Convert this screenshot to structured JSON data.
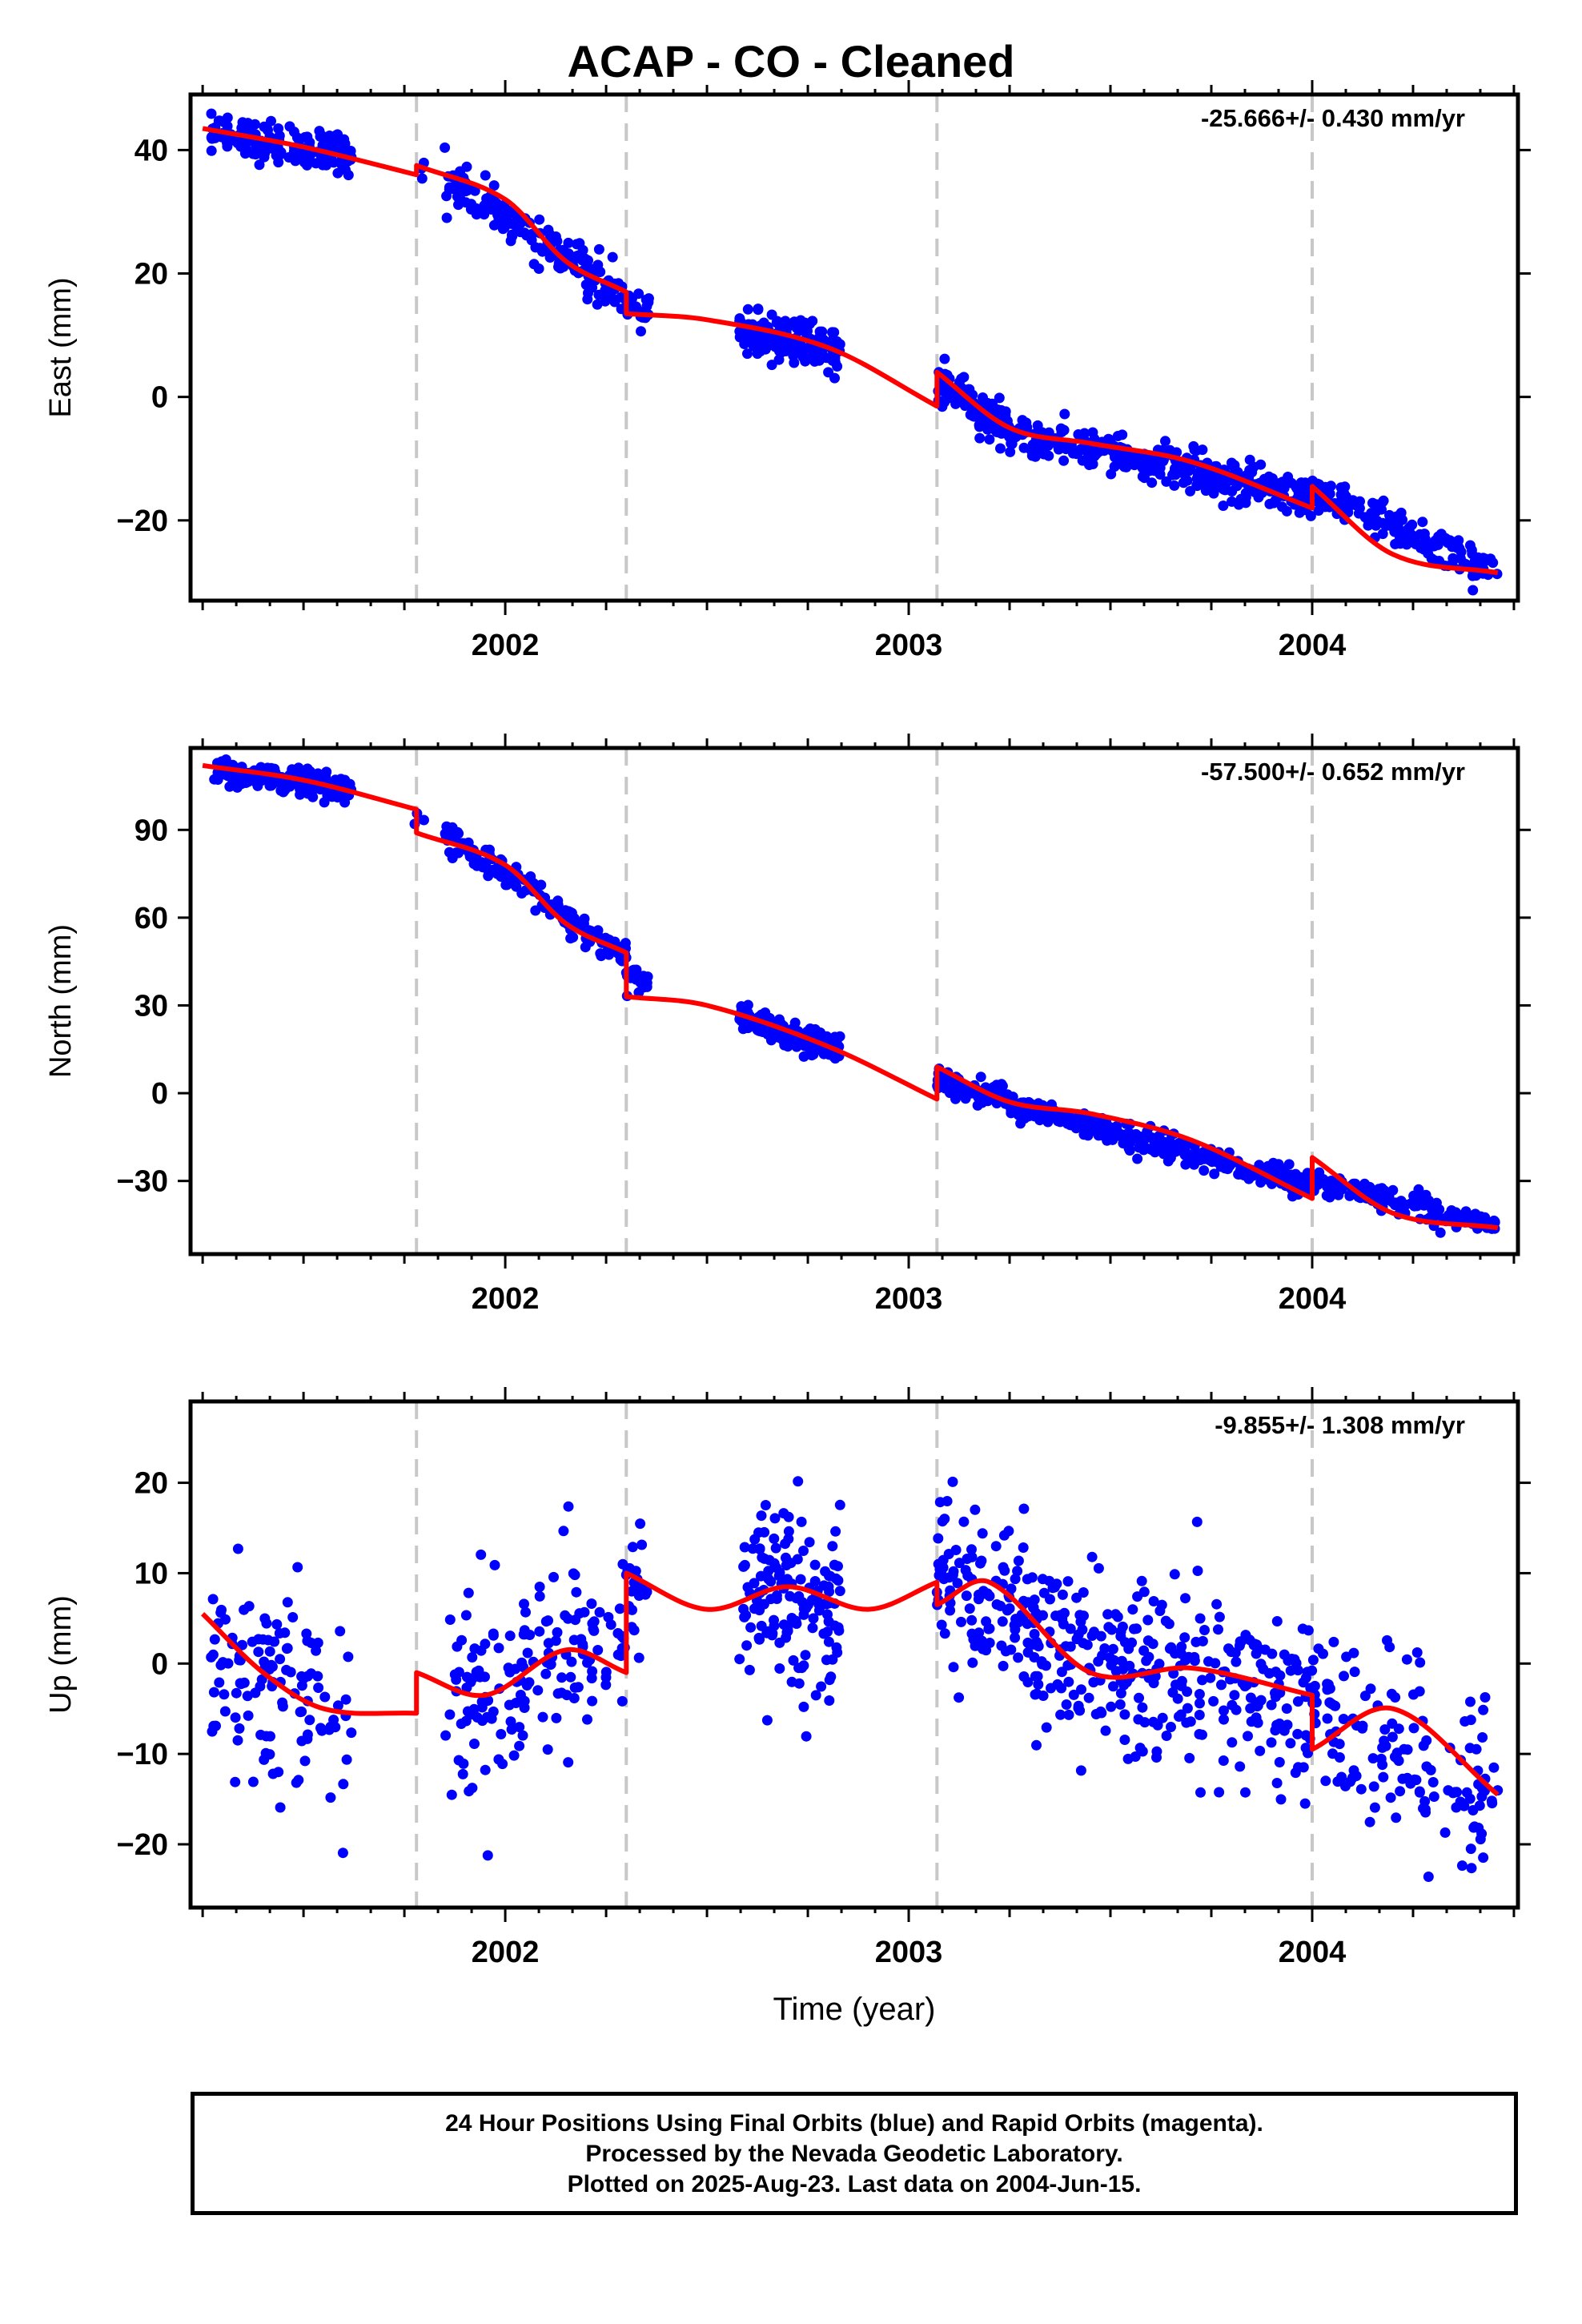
{
  "title": "ACAP  - CO - Cleaned",
  "colors": {
    "data": "#0000ff",
    "model": "#ff0000",
    "break_lines": "#c8c8c8",
    "axes": "#000000"
  },
  "footer": {
    "line1": "24 Hour Positions Using Final Orbits (blue) and Rapid Orbits (magenta).",
    "line2": "Processed by the Nevada Geodetic Laboratory.",
    "line3": "Plotted on 2025-Aug-23. Last data on 2004-Jun-15."
  },
  "chart_data": [
    {
      "type": "scatter",
      "ylabel": "East (mm)",
      "xlabel": "",
      "rate_label": "-25.666+/- 0.430 mm/yr",
      "xlim": [
        2001.22,
        2004.51
      ],
      "ylim": [
        -33,
        49
      ],
      "xticks": [
        2002,
        2003,
        2004
      ],
      "yticks": [
        -20,
        0,
        20,
        40
      ],
      "steps": [
        2001.78,
        2002.3,
        2003.07,
        2004.0
      ],
      "segments": [
        {
          "x": [
            2001.25,
            2001.5,
            2001.78
          ],
          "y": [
            43.5,
            40.5,
            36.0
          ]
        },
        {
          "x": [
            2001.78,
            2002.0,
            2002.15,
            2002.3
          ],
          "y": [
            37.5,
            32.0,
            22.0,
            17.0
          ]
        },
        {
          "x": [
            2002.3,
            2002.5,
            2002.8,
            2003.07
          ],
          "y": [
            13.5,
            12.5,
            8.0,
            -1.5
          ]
        },
        {
          "x": [
            2003.07,
            2003.25,
            2003.45,
            2003.7,
            2004.0
          ],
          "y": [
            4.0,
            -5.0,
            -7.5,
            -10.5,
            -18.0
          ]
        },
        {
          "x": [
            2004.0,
            2004.2,
            2004.46
          ],
          "y": [
            -14.5,
            -25.5,
            -28.5
          ]
        }
      ],
      "clusters": [
        {
          "x0": 2001.27,
          "x1": 2001.62,
          "n": 160,
          "trend": [
            42.5,
            39.5
          ],
          "sd": 1.6
        },
        {
          "x0": 2001.77,
          "x1": 2001.8,
          "n": 3,
          "trend": [
            36.0,
            36.0
          ],
          "sd": 1.0
        },
        {
          "x0": 2001.85,
          "x1": 2002.3,
          "n": 160,
          "trend": [
            35.5,
            16.0
          ],
          "sd": 1.8
        },
        {
          "x0": 2002.3,
          "x1": 2002.36,
          "n": 20,
          "trend": [
            15.0,
            14.0
          ],
          "sd": 1.3
        },
        {
          "x0": 2002.58,
          "x1": 2002.83,
          "n": 170,
          "trend": [
            10.5,
            7.5
          ],
          "sd": 1.8
        },
        {
          "x0": 2003.07,
          "x1": 2003.25,
          "n": 110,
          "trend": [
            2.0,
            -5.0
          ],
          "sd": 1.6
        },
        {
          "x0": 2003.25,
          "x1": 2004.0,
          "n": 330,
          "trend": [
            -6.0,
            -16.0
          ],
          "sd": 1.6
        },
        {
          "x0": 2004.0,
          "x1": 2004.46,
          "n": 160,
          "trend": [
            -15.0,
            -29.0
          ],
          "sd": 1.6
        }
      ]
    },
    {
      "type": "scatter",
      "ylabel": "North (mm)",
      "xlabel": "",
      "rate_label": "-57.500+/- 0.652 mm/yr",
      "xlim": [
        2001.22,
        2004.51
      ],
      "ylim": [
        -55,
        118
      ],
      "xticks": [
        2002,
        2003,
        2004
      ],
      "yticks": [
        -30,
        0,
        30,
        60,
        90
      ],
      "steps": [
        2001.78,
        2002.3,
        2003.07,
        2004.0
      ],
      "segments": [
        {
          "x": [
            2001.25,
            2001.5,
            2001.78
          ],
          "y": [
            112.0,
            107.0,
            97.0
          ]
        },
        {
          "x": [
            2001.78,
            2002.0,
            2002.15,
            2002.3
          ],
          "y": [
            89.0,
            78.0,
            58.0,
            48.0
          ]
        },
        {
          "x": [
            2002.3,
            2002.5,
            2002.8,
            2003.07
          ],
          "y": [
            33.0,
            30.0,
            16.0,
            -2.0
          ]
        },
        {
          "x": [
            2003.07,
            2003.25,
            2003.45,
            2003.7,
            2004.0
          ],
          "y": [
            9.0,
            -3.0,
            -7.0,
            -16.0,
            -36.0
          ]
        },
        {
          "x": [
            2004.0,
            2004.2,
            2004.46
          ],
          "y": [
            -22.0,
            -41.0,
            -46.0
          ]
        }
      ],
      "clusters": [
        {
          "x0": 2001.27,
          "x1": 2001.62,
          "n": 160,
          "trend": [
            110.0,
            104.0
          ],
          "sd": 2.2
        },
        {
          "x0": 2001.77,
          "x1": 2001.8,
          "n": 3,
          "trend": [
            95.0,
            92.0
          ],
          "sd": 1.5
        },
        {
          "x0": 2001.85,
          "x1": 2002.3,
          "n": 160,
          "trend": [
            89.0,
            46.0
          ],
          "sd": 2.4
        },
        {
          "x0": 2002.3,
          "x1": 2002.36,
          "n": 20,
          "trend": [
            40.0,
            37.0
          ],
          "sd": 2.0
        },
        {
          "x0": 2002.58,
          "x1": 2002.83,
          "n": 170,
          "trend": [
            26.0,
            15.0
          ],
          "sd": 2.2
        },
        {
          "x0": 2003.07,
          "x1": 2003.25,
          "n": 110,
          "trend": [
            5.0,
            -3.0
          ],
          "sd": 2.0
        },
        {
          "x0": 2003.25,
          "x1": 2004.0,
          "n": 330,
          "trend": [
            -4.0,
            -32.0
          ],
          "sd": 2.2
        },
        {
          "x0": 2004.0,
          "x1": 2004.46,
          "n": 160,
          "trend": [
            -30.0,
            -46.0
          ],
          "sd": 2.0
        }
      ]
    },
    {
      "type": "scatter",
      "ylabel": "Up (mm)",
      "xlabel": "Time (year)",
      "rate_label": "-9.855+/- 1.308 mm/yr",
      "xlim": [
        2001.22,
        2004.51
      ],
      "ylim": [
        -27,
        29
      ],
      "xticks": [
        2002,
        2003,
        2004
      ],
      "yticks": [
        -20,
        -10,
        0,
        10,
        20
      ],
      "steps": [
        2001.78,
        2002.3,
        2003.07,
        2004.0
      ],
      "segments": [
        {
          "x": [
            2001.25,
            2001.4,
            2001.55,
            2001.78
          ],
          "y": [
            5.5,
            -1.0,
            -5.0,
            -5.5
          ]
        },
        {
          "x": [
            2001.78,
            2001.95,
            2002.15,
            2002.3
          ],
          "y": [
            -1.0,
            -3.5,
            1.5,
            -1.0
          ]
        },
        {
          "x": [
            2002.3,
            2002.5,
            2002.7,
            2002.9,
            2003.07
          ],
          "y": [
            10.0,
            6.0,
            8.5,
            6.0,
            9.0
          ]
        },
        {
          "x": [
            2003.07,
            2003.2,
            2003.45,
            2003.7,
            2004.0
          ],
          "y": [
            6.5,
            9.0,
            -1.0,
            -0.5,
            -3.5
          ]
        },
        {
          "x": [
            2004.0,
            2004.2,
            2004.46
          ],
          "y": [
            -9.5,
            -5.0,
            -14.5
          ]
        }
      ],
      "clusters": [
        {
          "x0": 2001.27,
          "x1": 2001.62,
          "n": 120,
          "trend": [
            3.0,
            -7.0
          ],
          "sd": 5.5
        },
        {
          "x0": 2001.85,
          "x1": 2002.3,
          "n": 160,
          "trend": [
            -5.0,
            5.0
          ],
          "sd": 5.5
        },
        {
          "x0": 2002.3,
          "x1": 2002.36,
          "n": 20,
          "trend": [
            10.0,
            8.0
          ],
          "sd": 4.0
        },
        {
          "x0": 2002.58,
          "x1": 2002.83,
          "n": 150,
          "trend": [
            7.0,
            7.0
          ],
          "sd": 5.0
        },
        {
          "x0": 2003.07,
          "x1": 2003.3,
          "n": 110,
          "trend": [
            10.0,
            5.0
          ],
          "sd": 4.5
        },
        {
          "x0": 2003.3,
          "x1": 2004.0,
          "n": 300,
          "trend": [
            2.0,
            -5.0
          ],
          "sd": 5.0
        },
        {
          "x0": 2004.0,
          "x1": 2004.46,
          "n": 140,
          "trend": [
            -5.0,
            -15.0
          ],
          "sd": 5.0
        }
      ]
    }
  ]
}
